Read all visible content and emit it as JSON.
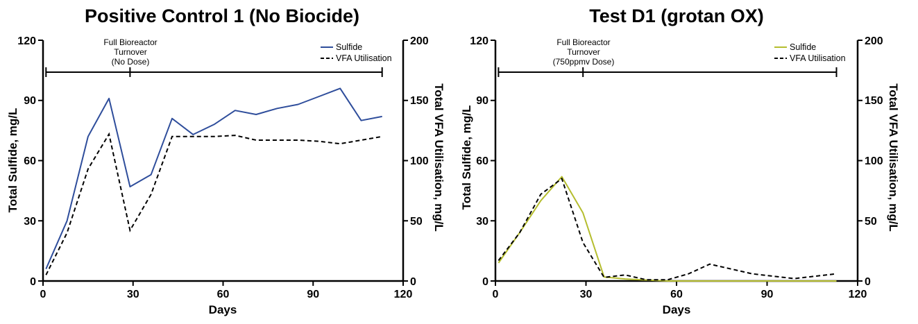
{
  "chart_data": [
    {
      "type": "line",
      "title": "Positive Control 1 (No Biocide)",
      "xlabel": "Days",
      "ylabel": "Total Sulfide, mg/L",
      "y2label": "Total VFA Utilisation, mg/L",
      "xlim": [
        0,
        120
      ],
      "ylim": [
        0,
        120
      ],
      "y2lim": [
        0,
        200
      ],
      "xticks": [
        0,
        30,
        60,
        90,
        120
      ],
      "yticks": [
        0,
        30,
        60,
        90,
        120
      ],
      "y2ticks": [
        0,
        50,
        100,
        150,
        200
      ],
      "legend_position": "top-right",
      "annotation": {
        "lines": [
          "Full Bioreactor",
          "Turnover",
          "(No Dose)"
        ],
        "span": [
          1,
          113
        ],
        "marker": 29
      },
      "series": [
        {
          "name": "Sulfide",
          "axis": "left",
          "color": "#2e4d9b",
          "style": "solid",
          "x": [
            1,
            8,
            15,
            22,
            29,
            36,
            43,
            50,
            57,
            64,
            71,
            78,
            85,
            92,
            99,
            106,
            113
          ],
          "y": [
            6,
            30,
            72,
            91,
            47,
            53,
            81,
            73,
            78,
            85,
            83,
            86,
            88,
            92,
            96,
            80,
            82
          ]
        },
        {
          "name": "VFA Utilisation",
          "axis": "right",
          "color": "#000000",
          "style": "dashed",
          "x": [
            1,
            8,
            15,
            22,
            29,
            36,
            43,
            50,
            57,
            64,
            71,
            78,
            85,
            92,
            99,
            106,
            113
          ],
          "y": [
            5,
            40,
            93,
            122,
            42,
            72,
            120,
            120,
            120,
            121,
            117,
            117,
            117,
            116,
            114,
            117,
            120
          ]
        }
      ]
    },
    {
      "type": "line",
      "title": "Test D1 (grotan OX)",
      "xlabel": "Days",
      "ylabel": "Total Sulfide, mg/L",
      "y2label": "Total VFA Utilisation, mg/L",
      "xlim": [
        0,
        120
      ],
      "ylim": [
        0,
        120
      ],
      "y2lim": [
        0,
        200
      ],
      "xticks": [
        0,
        30,
        60,
        90,
        120
      ],
      "yticks": [
        0,
        30,
        60,
        90,
        120
      ],
      "y2ticks": [
        0,
        50,
        100,
        150,
        200
      ],
      "legend_position": "top-right",
      "annotation": {
        "lines": [
          "Full Bioreactor",
          "Turnover",
          "(750ppmv Dose)"
        ],
        "span": [
          1,
          113
        ],
        "marker": 29
      },
      "series": [
        {
          "name": "Sulfide",
          "axis": "left",
          "color": "#b5bd2e",
          "style": "solid",
          "x": [
            1,
            8,
            15,
            22,
            29,
            36,
            43,
            50,
            57,
            64,
            71,
            78,
            85,
            92,
            99,
            106,
            113
          ],
          "y": [
            9,
            24,
            40,
            52,
            34,
            2,
            1,
            0.5,
            0,
            0,
            0,
            0,
            0,
            0,
            0,
            0,
            0
          ]
        },
        {
          "name": "VFA Utilisation",
          "axis": "right",
          "color": "#000000",
          "style": "dashed",
          "x": [
            1,
            8,
            15,
            22,
            29,
            36,
            43,
            50,
            57,
            64,
            71,
            78,
            85,
            92,
            99,
            106,
            113
          ],
          "y": [
            17,
            40,
            72,
            85,
            32,
            3,
            5,
            1,
            1,
            6,
            14,
            10,
            6,
            4,
            2,
            4,
            6
          ]
        }
      ]
    }
  ]
}
